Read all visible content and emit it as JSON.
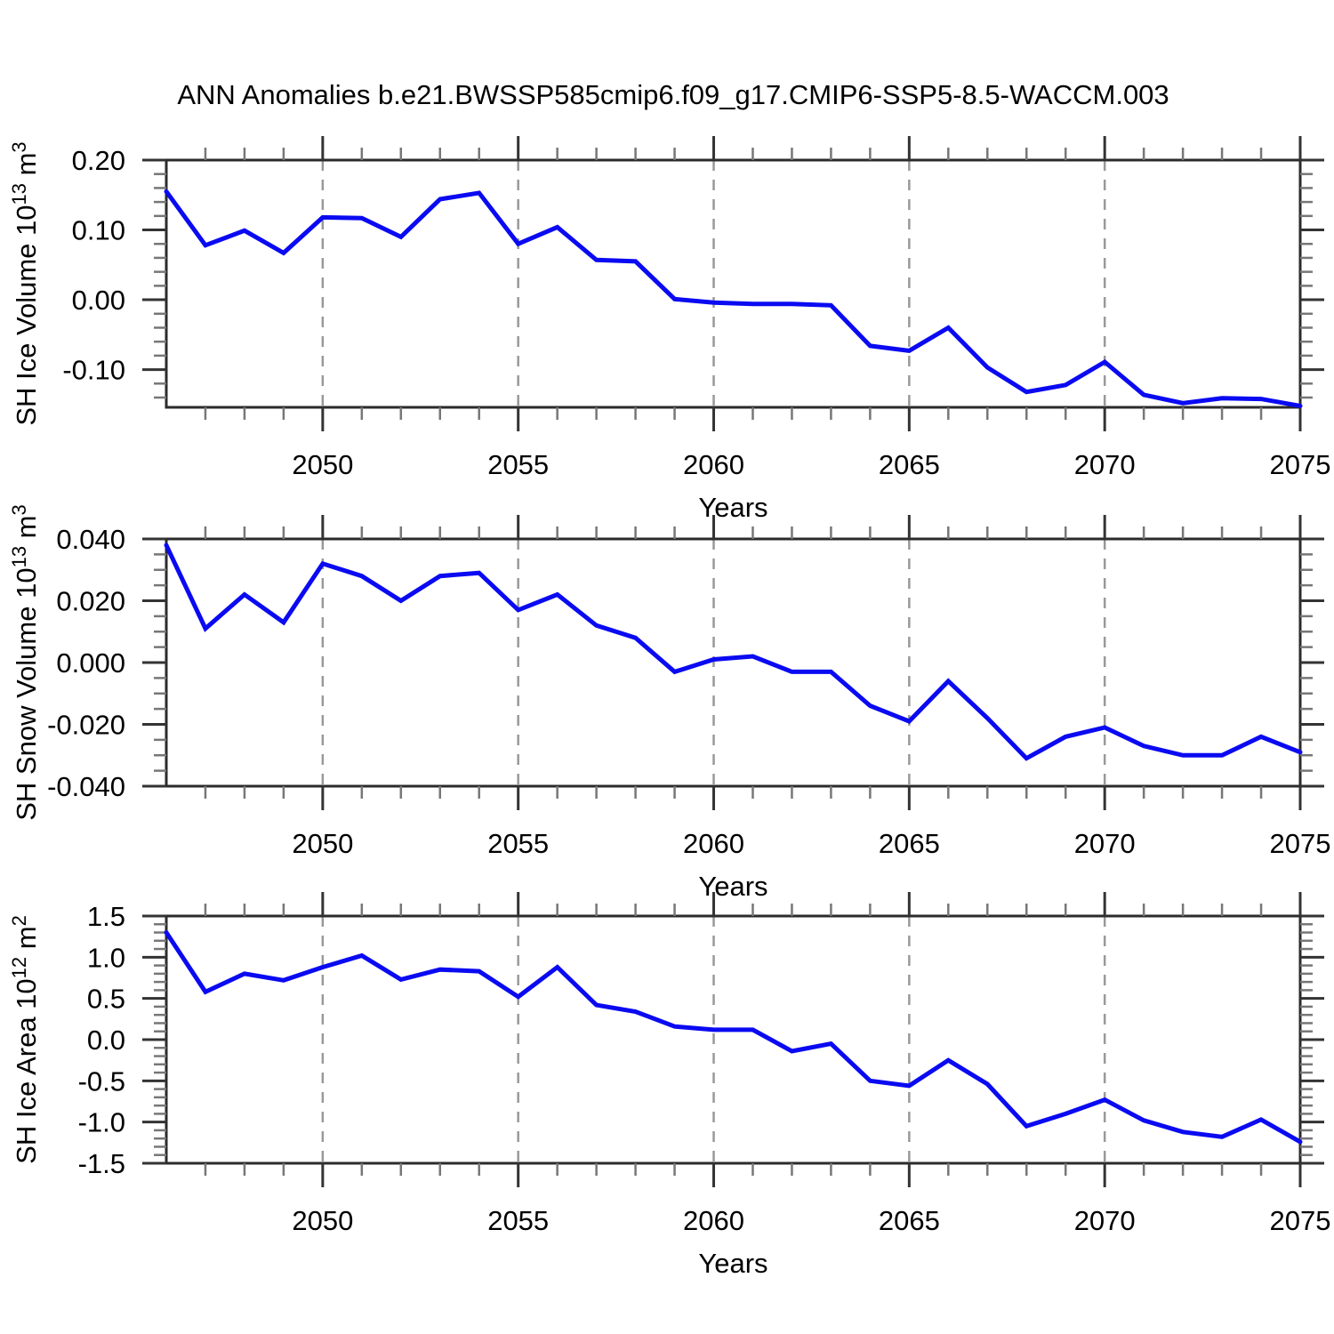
{
  "title": "ANN Anomalies b.e21.BWSSP585cmip6.f09_g17.CMIP6-SSP5-8.5-WACCM.003",
  "colors": {
    "line": "#0a0af2",
    "frame": "#2b2b2b",
    "major_tick": "#333333",
    "minor_tick": "#777777",
    "grid": "#999999",
    "text": "#000000",
    "background": "#ffffff"
  },
  "chart_data": [
    {
      "type": "line",
      "name": "sh-ice-volume",
      "xlabel": "Years",
      "ylabel": "SH Ice Volume 10^13 m^3",
      "ylabel_parts": {
        "base": "SH Ice Volume 10",
        "exp": "13",
        "unit": " m",
        "unit_exp": "3"
      },
      "xlim": [
        2046,
        2075
      ],
      "ylim": [
        -0.154,
        0.2
      ],
      "xticks": [
        2050,
        2055,
        2060,
        2065,
        2070,
        2075
      ],
      "xtick_labels": [
        "2050",
        "2055",
        "2060",
        "2065",
        "2070",
        "2075"
      ],
      "gridlines_x": [
        2050,
        2055,
        2060,
        2065,
        2070
      ],
      "grid": "vertical-dashed",
      "legend": "none",
      "yticks": [
        0.2,
        0.1,
        0.0,
        -0.1
      ],
      "ytick_labels": [
        "0.20",
        "0.10",
        "0.00",
        "-0.10"
      ],
      "y_minor_step": 0.02,
      "x": [
        2046,
        2047,
        2048,
        2049,
        2050,
        2051,
        2052,
        2053,
        2054,
        2055,
        2056,
        2057,
        2058,
        2059,
        2060,
        2061,
        2062,
        2063,
        2064,
        2065,
        2066,
        2067,
        2068,
        2069,
        2070,
        2071,
        2072,
        2073,
        2074,
        2075
      ],
      "values": [
        0.155,
        0.078,
        0.099,
        0.067,
        0.118,
        0.117,
        0.09,
        0.144,
        0.153,
        0.08,
        0.104,
        0.057,
        0.055,
        0.001,
        -0.004,
        -0.006,
        -0.006,
        -0.008,
        -0.066,
        -0.073,
        -0.04,
        -0.097,
        -0.132,
        -0.122,
        -0.089,
        -0.136,
        -0.148,
        -0.141,
        -0.142,
        -0.152
      ]
    },
    {
      "type": "line",
      "name": "sh-snow-volume",
      "xlabel": "Years",
      "ylabel": "SH Snow Volume 10^13 m^3",
      "ylabel_parts": {
        "base": "SH Snow Volume 10",
        "exp": "13",
        "unit": " m",
        "unit_exp": "3"
      },
      "xlim": [
        2046,
        2075
      ],
      "ylim": [
        -0.04,
        0.04
      ],
      "xticks": [
        2050,
        2055,
        2060,
        2065,
        2070,
        2075
      ],
      "xtick_labels": [
        "2050",
        "2055",
        "2060",
        "2065",
        "2070",
        "2075"
      ],
      "gridlines_x": [
        2050,
        2055,
        2060,
        2065,
        2070
      ],
      "grid": "vertical-dashed",
      "legend": "none",
      "yticks": [
        0.04,
        0.02,
        0.0,
        -0.02,
        -0.04
      ],
      "ytick_labels": [
        "0.040",
        "0.020",
        "0.000",
        "-0.020",
        "-0.040"
      ],
      "y_minor_step": 0.005,
      "x": [
        2046,
        2047,
        2048,
        2049,
        2050,
        2051,
        2052,
        2053,
        2054,
        2055,
        2056,
        2057,
        2058,
        2059,
        2060,
        2061,
        2062,
        2063,
        2064,
        2065,
        2066,
        2067,
        2068,
        2069,
        2070,
        2071,
        2072,
        2073,
        2074,
        2075
      ],
      "values": [
        0.038,
        0.011,
        0.022,
        0.013,
        0.032,
        0.028,
        0.02,
        0.028,
        0.029,
        0.017,
        0.022,
        0.012,
        0.008,
        -0.003,
        0.001,
        0.002,
        -0.003,
        -0.003,
        -0.014,
        -0.019,
        -0.006,
        -0.018,
        -0.031,
        -0.024,
        -0.021,
        -0.027,
        -0.03,
        -0.03,
        -0.024,
        -0.029
      ]
    },
    {
      "type": "line",
      "name": "sh-ice-area",
      "xlabel": "Years",
      "ylabel": "SH Ice Area 10^12 m^2",
      "ylabel_parts": {
        "base": "SH Ice Area 10",
        "exp": "12",
        "unit": " m",
        "unit_exp": "2"
      },
      "xlim": [
        2046,
        2075
      ],
      "ylim": [
        -1.5,
        1.5
      ],
      "xticks": [
        2050,
        2055,
        2060,
        2065,
        2070,
        2075
      ],
      "xtick_labels": [
        "2050",
        "2055",
        "2060",
        "2065",
        "2070",
        "2075"
      ],
      "gridlines_x": [
        2050,
        2055,
        2060,
        2065,
        2070
      ],
      "grid": "vertical-dashed",
      "legend": "none",
      "yticks": [
        1.5,
        1.0,
        0.5,
        0.0,
        -0.5,
        -1.0,
        -1.5
      ],
      "ytick_labels": [
        "1.5",
        "1.0",
        "0.5",
        "0.0",
        "-0.5",
        "-1.0",
        "-1.5"
      ],
      "y_minor_step": 0.1,
      "x": [
        2046,
        2047,
        2048,
        2049,
        2050,
        2051,
        2052,
        2053,
        2054,
        2055,
        2056,
        2057,
        2058,
        2059,
        2060,
        2061,
        2062,
        2063,
        2064,
        2065,
        2066,
        2067,
        2068,
        2069,
        2070,
        2071,
        2072,
        2073,
        2074,
        2075
      ],
      "values": [
        1.3,
        0.58,
        0.8,
        0.72,
        0.88,
        1.02,
        0.73,
        0.85,
        0.83,
        0.52,
        0.88,
        0.42,
        0.34,
        0.16,
        0.12,
        0.12,
        -0.14,
        -0.05,
        -0.5,
        -0.56,
        -0.25,
        -0.54,
        -1.05,
        -0.9,
        -0.73,
        -0.98,
        -1.12,
        -1.18,
        -0.97,
        -1.24
      ]
    }
  ]
}
